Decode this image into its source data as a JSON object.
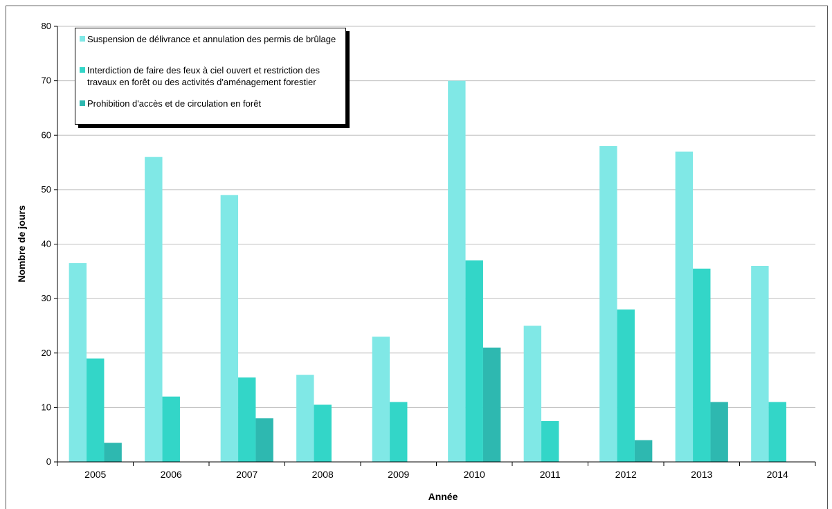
{
  "chart_data": {
    "type": "bar",
    "title": "",
    "xlabel": "Année",
    "ylabel": "Nombre de jours",
    "ylim": [
      0,
      80
    ],
    "yticks": [
      0,
      10,
      20,
      30,
      40,
      50,
      60,
      70,
      80
    ],
    "grid": true,
    "legend_position": "top-left",
    "categories": [
      "2005",
      "2006",
      "2007",
      "2008",
      "2009",
      "2010",
      "2011",
      "2012",
      "2013",
      "2014"
    ],
    "series": [
      {
        "name": "Suspension de délivrance et annulation des permis de brûlage",
        "color": "#80E8E6",
        "values": [
          36.5,
          56,
          49,
          16,
          23,
          70,
          25,
          58,
          57,
          36
        ]
      },
      {
        "name": "Interdiction de faire des feux à ciel ouvert et restriction des travaux en forêt ou des activités d'aménagement forestier",
        "color": "#33D6C8",
        "values": [
          19,
          12,
          15.5,
          10.5,
          11,
          37,
          7.5,
          28,
          35.5,
          11
        ]
      },
      {
        "name": "Prohibition d'accès et de circulation en forêt",
        "color": "#2EB8B0",
        "values": [
          3.5,
          0,
          8,
          0,
          0,
          21,
          0,
          4,
          11,
          0
        ]
      }
    ]
  }
}
